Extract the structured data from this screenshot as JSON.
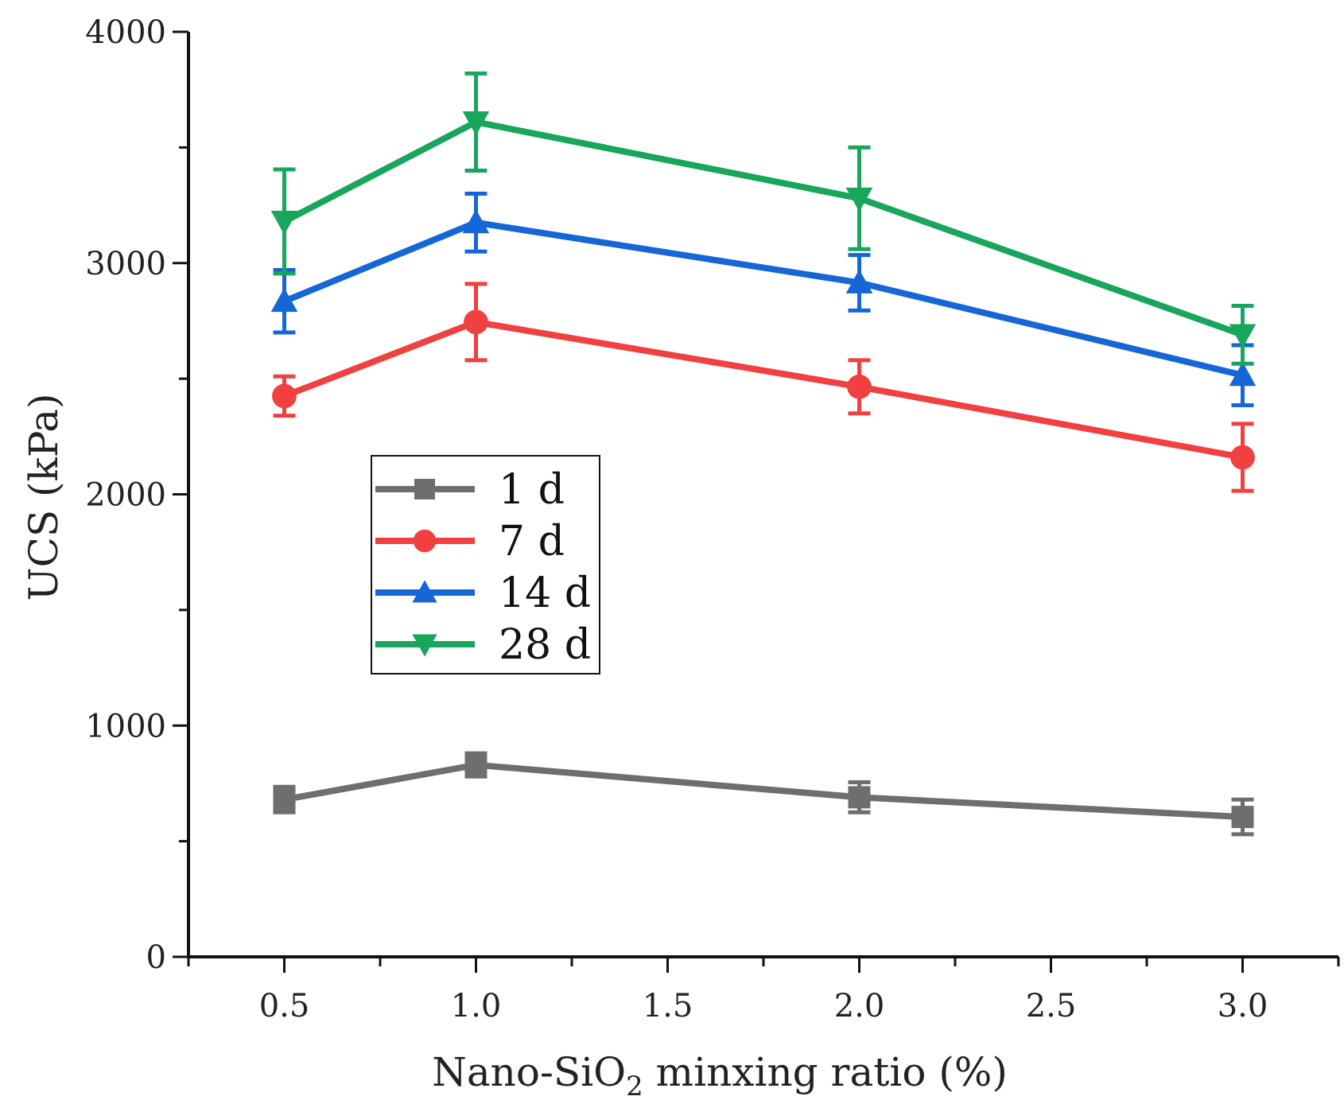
{
  "chart_data": {
    "type": "line",
    "title": "",
    "xlabel": {
      "prefix": "Nano-SiO",
      "subscript": "2",
      "suffix": " minxing ratio (%)"
    },
    "ylabel": "UCS (kPa)",
    "xlim": [
      0.25,
      3.25
    ],
    "ylim": [
      0,
      4000
    ],
    "x_ticks": [
      {
        "value": 0.5,
        "label": "0.5"
      },
      {
        "value": 1.0,
        "label": "1.0"
      },
      {
        "value": 1.5,
        "label": "1.5"
      },
      {
        "value": 2.0,
        "label": "2.0"
      },
      {
        "value": 2.5,
        "label": "2.5"
      },
      {
        "value": 3.0,
        "label": "3.0"
      }
    ],
    "y_ticks": [
      {
        "value": 0,
        "label": "0"
      },
      {
        "value": 1000,
        "label": "1000"
      },
      {
        "value": 2000,
        "label": "2000"
      },
      {
        "value": 3000,
        "label": "3000"
      },
      {
        "value": 4000,
        "label": "4000"
      }
    ],
    "x": [
      0.5,
      1.0,
      2.0,
      3.0
    ],
    "legend_position": "center-left",
    "grid": false,
    "series": [
      {
        "name": "1 d",
        "marker": "square",
        "color": "#6e6e6e",
        "values": [
          680,
          830,
          690,
          605
        ],
        "errors": [
          55,
          50,
          65,
          75
        ]
      },
      {
        "name": "7 d",
        "marker": "circle",
        "color": "#f04040",
        "values": [
          2425,
          2745,
          2465,
          2160
        ],
        "errors": [
          85,
          165,
          115,
          145
        ]
      },
      {
        "name": "14 d",
        "marker": "triangle-up",
        "color": "#1566d6",
        "values": [
          2835,
          3175,
          2915,
          2515
        ],
        "errors": [
          135,
          125,
          120,
          130
        ]
      },
      {
        "name": "28 d",
        "marker": "triangle-down",
        "color": "#18a55c",
        "values": [
          3180,
          3610,
          3280,
          2690
        ],
        "errors": [
          225,
          210,
          220,
          125
        ]
      }
    ]
  }
}
